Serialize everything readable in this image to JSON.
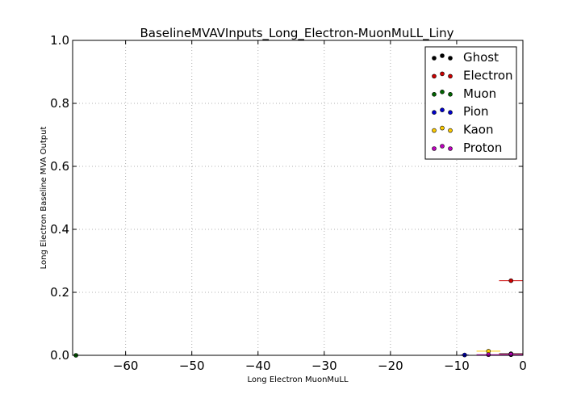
{
  "chart_data": {
    "type": "scatter",
    "title": "BaselineMVAVInputs_Long_Electron-MuonMuLL_Liny",
    "xlabel": "Long Electron MuonMuLL",
    "ylabel": "Long Electron Baseline MVA Output",
    "xlim": [
      -68,
      0
    ],
    "ylim": [
      0.0,
      1.0
    ],
    "xticks": [
      -60,
      -50,
      -40,
      -30,
      -20,
      -10,
      0
    ],
    "xtick_labels": [
      "−60",
      "−50",
      "−40",
      "−30",
      "−20",
      "−10",
      "0"
    ],
    "yticks": [
      0.0,
      0.2,
      0.4,
      0.6,
      0.8,
      1.0
    ],
    "ytick_labels": [
      "0.0",
      "0.2",
      "0.4",
      "0.6",
      "0.8",
      "1.0"
    ],
    "grid": true,
    "legend_position": "top-right",
    "series": [
      {
        "name": "Ghost",
        "color": "#000000",
        "points": [
          {
            "x": -1.8,
            "y": 0.005,
            "xerr": 1.8
          }
        ]
      },
      {
        "name": "Electron",
        "color": "#cc0000",
        "points": [
          {
            "x": -1.8,
            "y": 0.237,
            "xerr": 1.8
          }
        ]
      },
      {
        "name": "Muon",
        "color": "#006400",
        "points": [
          {
            "x": -67.5,
            "y": 0.0,
            "xerr": 0.5
          }
        ]
      },
      {
        "name": "Pion",
        "color": "#0000cc",
        "points": [
          {
            "x": -8.8,
            "y": 0.001,
            "xerr": 0.6
          },
          {
            "x": -1.8,
            "y": 0.002,
            "xerr": 1.8
          }
        ]
      },
      {
        "name": "Kaon",
        "color": "#ffcc00",
        "points": [
          {
            "x": -5.2,
            "y": 0.013,
            "xerr": 1.8
          },
          {
            "x": -1.8,
            "y": 0.004,
            "xerr": 1.8
          }
        ]
      },
      {
        "name": "Proton",
        "color": "#bf00bf",
        "points": [
          {
            "x": -5.2,
            "y": 0.002,
            "xerr": 1.8
          },
          {
            "x": -1.8,
            "y": 0.003,
            "xerr": 1.8
          }
        ]
      }
    ]
  }
}
